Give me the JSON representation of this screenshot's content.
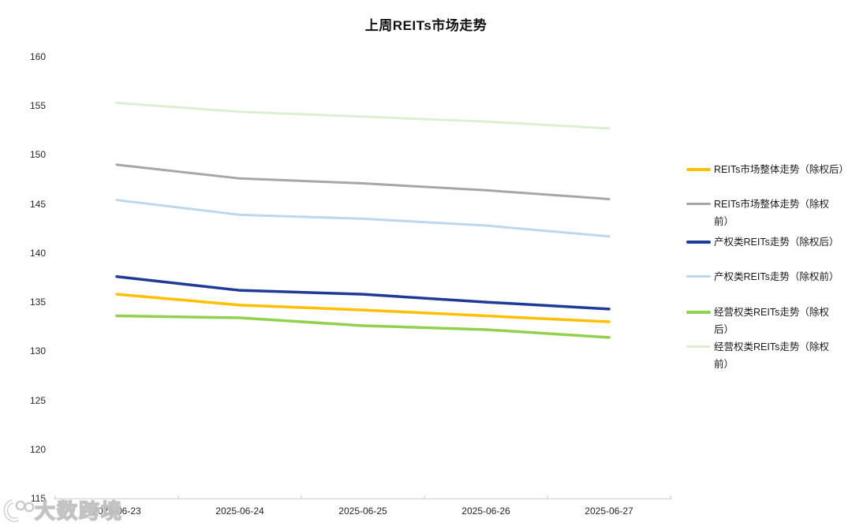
{
  "title": "上周REITs市场走势",
  "watermark": {
    "text": "大数跨境",
    "logo": "googol-10-100-logo"
  },
  "chart_data": {
    "type": "line",
    "title": "上周REITs市场走势",
    "x": [
      "2025-06-23",
      "2025-06-24",
      "2025-06-25",
      "2025-06-26",
      "2025-06-27"
    ],
    "ylim": [
      115,
      160
    ],
    "yticks": [
      160,
      155,
      150,
      145,
      140,
      135,
      130,
      125,
      120,
      115
    ],
    "grid": false,
    "legend_position": "right",
    "axis_color": "#D9D9D9",
    "series": [
      {
        "name": "REITs市场整体走势（除权后）",
        "legend_lines": [
          "REITs市场整体走势（除权后）"
        ],
        "color": "#FFC000",
        "width": 3.5,
        "values": [
          135.8,
          134.7,
          134.2,
          133.6,
          133.0
        ]
      },
      {
        "name": "REITs市场整体走势（除权前）",
        "legend_lines": [
          " REITs市场整体走势（除权",
          "前）"
        ],
        "color": "#A6A6A6",
        "width": 3,
        "values": [
          149.0,
          147.6,
          147.1,
          146.4,
          145.5
        ]
      },
      {
        "name": "产权类REITs走势（除权后）",
        "legend_lines": [
          "产权类REITs走势（除权后）"
        ],
        "color": "#1E3C96",
        "width": 3.5,
        "values": [
          137.6,
          136.2,
          135.8,
          135.0,
          134.3
        ]
      },
      {
        "name": "产权类REITs走势（除权前）",
        "legend_lines": [
          "产权类REITs走势（除权前）"
        ],
        "color": "#BDD7EE",
        "width": 3,
        "values": [
          145.4,
          143.9,
          143.5,
          142.8,
          141.7
        ]
      },
      {
        "name": "经营权类REITs走势（除权后）",
        "legend_lines": [
          "经营权类REITs走势（除权",
          "后）"
        ],
        "color": "#92D050",
        "width": 3.5,
        "values": [
          133.6,
          133.4,
          132.6,
          132.2,
          131.4
        ]
      },
      {
        "name": "经营权类REITs走势（除权前）",
        "legend_lines": [
          "经营权类REITs走势（除权",
          "前）"
        ],
        "color": "#DDEFD2",
        "width": 3,
        "values": [
          155.3,
          154.4,
          153.9,
          153.4,
          152.7
        ]
      }
    ]
  }
}
